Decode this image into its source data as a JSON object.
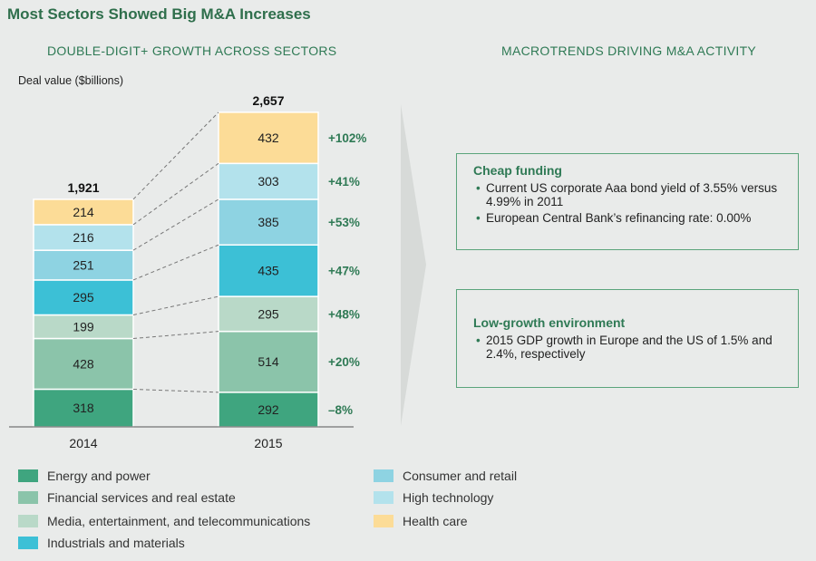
{
  "title": "Most Sectors Showed Big M&A Increases",
  "left_header": "DOUBLE-DIGIT+ GROWTH ACROSS SECTORS",
  "right_header": "MACROTRENDS DRIVING M&A ACTIVITY",
  "chart_data": {
    "type": "bar",
    "stacked": true,
    "ylabel": "Deal value ($billions)",
    "categories": [
      "2014",
      "2015"
    ],
    "totals": [
      "1,921",
      "2,657"
    ],
    "series": [
      {
        "name": "Energy and power",
        "values": [
          318,
          292
        ],
        "color": "#3fa57f",
        "change": "–8%"
      },
      {
        "name": "Financial services and real estate",
        "values": [
          428,
          514
        ],
        "color": "#8bc4aa",
        "change": "+20%"
      },
      {
        "name": "Media, entertainment, and telecommunications",
        "values": [
          199,
          295
        ],
        "color": "#b9d9c8",
        "change": "+48%"
      },
      {
        "name": "Industrials and materials",
        "values": [
          295,
          435
        ],
        "color": "#3cc0d6",
        "change": "+47%"
      },
      {
        "name": "Consumer and retail",
        "values": [
          251,
          385
        ],
        "color": "#8ed3e2",
        "change": "+53%"
      },
      {
        "name": "High technology",
        "values": [
          216,
          303
        ],
        "color": "#b3e2ec",
        "change": "+41%"
      },
      {
        "name": "Health care",
        "values": [
          214,
          432
        ],
        "color": "#fcdc97",
        "change": "+102%"
      }
    ]
  },
  "macrotrends": [
    {
      "title": "Cheap funding",
      "bullets": [
        "Current US corporate Aaa bond yield of 3.55% versus 4.99% in 2011",
        "European Central Bank’s refinancing rate: 0.00%"
      ]
    },
    {
      "title": "Low-growth environment",
      "bullets": [
        "2015 GDP growth in Europe and the US of 1.5% and 2.4%, respectively"
      ]
    }
  ],
  "colors": {
    "accent": "#2f7a55",
    "background": "#e9ebea"
  }
}
